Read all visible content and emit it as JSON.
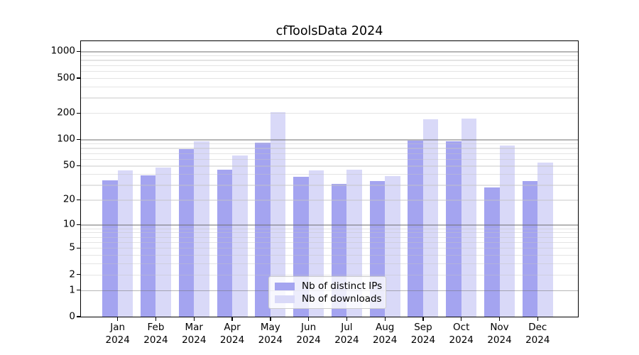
{
  "chart_data": {
    "type": "bar",
    "title": "cfToolsData 2024",
    "categories": [
      "Jan",
      "Feb",
      "Mar",
      "Apr",
      "May",
      "Jun",
      "Jul",
      "Aug",
      "Sep",
      "Oct",
      "Nov",
      "Dec"
    ],
    "category_year": "2024",
    "series": [
      {
        "name": "Nb of distinct IPs",
        "color": "#a4a4f0",
        "values": [
          34,
          39,
          78,
          45,
          92,
          37,
          31,
          33,
          97,
          95,
          28,
          33
        ]
      },
      {
        "name": "Nb of downloads",
        "color": "#d9d9f8",
        "values": [
          44,
          48,
          96,
          65,
          203,
          44,
          45,
          38,
          170,
          173,
          85,
          54
        ]
      }
    ],
    "y_axis": {
      "scale": "log-like (position proportional to log10(1+v))",
      "tick_labels": [
        0,
        1,
        2,
        5,
        10,
        20,
        50,
        100,
        200,
        500,
        1000
      ],
      "major_gridlines": [
        1,
        10,
        100,
        1000
      ],
      "range": [
        0,
        1300
      ]
    },
    "x_axis": {
      "tick_label_format": "month abbreviation over year"
    },
    "legend": {
      "position": "lower center, inside plot",
      "entries": [
        "Nb of distinct IPs",
        "Nb of downloads"
      ]
    },
    "grid": "on",
    "colors": {
      "bar_distinct_ips": "#a4a4f0",
      "bar_downloads": "#d9d9f8",
      "major_grid": "#b8b8b8",
      "minor_grid": "#e6e6e6",
      "spine": "#000000",
      "background": "#ffffff"
    }
  }
}
